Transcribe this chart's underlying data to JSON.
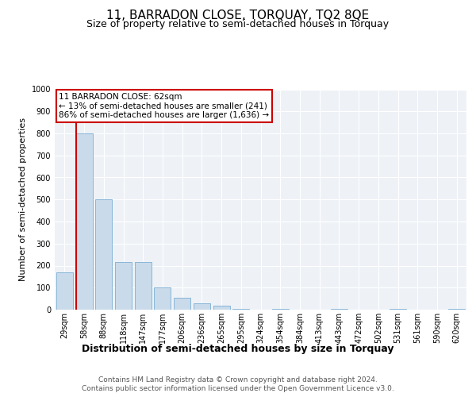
{
  "title": "11, BARRADON CLOSE, TORQUAY, TQ2 8QE",
  "subtitle": "Size of property relative to semi-detached houses in Torquay",
  "xlabel": "Distribution of semi-detached houses by size in Torquay",
  "ylabel": "Number of semi-detached properties",
  "categories": [
    "29sqm",
    "58sqm",
    "88sqm",
    "118sqm",
    "147sqm",
    "177sqm",
    "206sqm",
    "236sqm",
    "265sqm",
    "295sqm",
    "324sqm",
    "354sqm",
    "384sqm",
    "413sqm",
    "443sqm",
    "472sqm",
    "502sqm",
    "531sqm",
    "561sqm",
    "590sqm",
    "620sqm"
  ],
  "values": [
    170,
    800,
    500,
    215,
    215,
    100,
    55,
    30,
    18,
    5,
    0,
    5,
    0,
    0,
    5,
    0,
    0,
    5,
    0,
    0,
    5
  ],
  "bar_color": "#c9daea",
  "bar_edge_color": "#7bafd4",
  "annotation_text": "11 BARRADON CLOSE: 62sqm\n← 13% of semi-detached houses are smaller (241)\n86% of semi-detached houses are larger (1,636) →",
  "annotation_box_color": "#ffffff",
  "annotation_box_edge_color": "#cc0000",
  "highlight_line_color": "#cc0000",
  "ylim": [
    0,
    1000
  ],
  "yticks": [
    0,
    100,
    200,
    300,
    400,
    500,
    600,
    700,
    800,
    900,
    1000
  ],
  "footer_line1": "Contains HM Land Registry data © Crown copyright and database right 2024.",
  "footer_line2": "Contains public sector information licensed under the Open Government Licence v3.0.",
  "bg_color": "#ffffff",
  "plot_bg_color": "#eef2f7",
  "grid_color": "#ffffff",
  "title_fontsize": 11,
  "subtitle_fontsize": 9,
  "xlabel_fontsize": 9,
  "ylabel_fontsize": 8,
  "tick_fontsize": 7,
  "annotation_fontsize": 7.5,
  "footer_fontsize": 6.5
}
